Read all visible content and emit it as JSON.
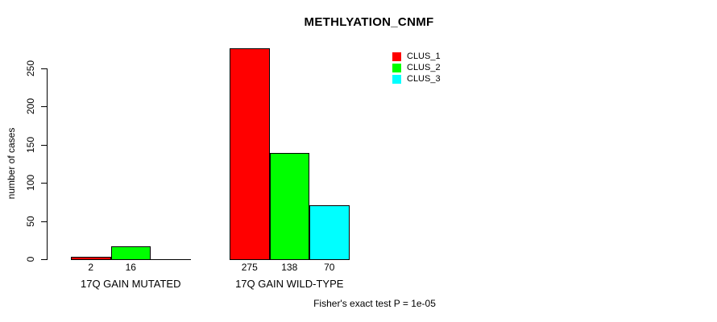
{
  "annotation": "Fisher's exact test P = 1e-05",
  "chart_data": {
    "type": "bar",
    "title": "METHLYATION_CNMF",
    "xlabel": "",
    "ylabel": "number of cases",
    "categories": [
      "17Q GAIN MUTATED",
      "17Q GAIN WILD-TYPE"
    ],
    "series": [
      {
        "name": "CLUS_1",
        "color": "#ff0000",
        "values": [
          2,
          275
        ]
      },
      {
        "name": "CLUS_2",
        "color": "#00ff00",
        "values": [
          16,
          138
        ]
      },
      {
        "name": "CLUS_3",
        "color": "#00ffff",
        "values": [
          0,
          70
        ]
      }
    ],
    "yticks": [
      0,
      50,
      100,
      150,
      200,
      250
    ],
    "ylim": [
      0,
      275
    ],
    "bar_value_labels": true,
    "legend_position": "top-right",
    "grid": false,
    "bar_border_color": "#000000",
    "background_color": "#ffffff"
  }
}
